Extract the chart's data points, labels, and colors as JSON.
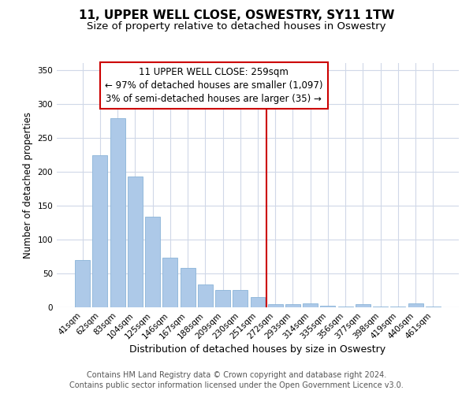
{
  "title": "11, UPPER WELL CLOSE, OSWESTRY, SY11 1TW",
  "subtitle": "Size of property relative to detached houses in Oswestry",
  "xlabel": "Distribution of detached houses by size in Oswestry",
  "ylabel": "Number of detached properties",
  "bar_labels": [
    "41sqm",
    "62sqm",
    "83sqm",
    "104sqm",
    "125sqm",
    "146sqm",
    "167sqm",
    "188sqm",
    "209sqm",
    "230sqm",
    "251sqm",
    "272sqm",
    "293sqm",
    "314sqm",
    "335sqm",
    "356sqm",
    "377sqm",
    "398sqm",
    "419sqm",
    "440sqm",
    "461sqm"
  ],
  "bar_values": [
    70,
    224,
    279,
    193,
    134,
    73,
    58,
    34,
    25,
    25,
    15,
    5,
    5,
    6,
    2,
    1,
    5,
    1,
    1,
    6,
    1
  ],
  "bar_color": "#adc9e8",
  "bar_edge_color": "#8ab4d8",
  "vline_x_index": 10.5,
  "vline_color": "#cc0000",
  "annotation_line1": "11 UPPER WELL CLOSE: 259sqm",
  "annotation_line2": "← 97% of detached houses are smaller (1,097)",
  "annotation_line3": "3% of semi-detached houses are larger (35) →",
  "ylim": [
    0,
    360
  ],
  "yticks": [
    0,
    50,
    100,
    150,
    200,
    250,
    300,
    350
  ],
  "footer_line1": "Contains HM Land Registry data © Crown copyright and database right 2024.",
  "footer_line2": "Contains public sector information licensed under the Open Government Licence v3.0.",
  "title_fontsize": 11,
  "subtitle_fontsize": 9.5,
  "xlabel_fontsize": 9,
  "ylabel_fontsize": 8.5,
  "tick_fontsize": 7.5,
  "annotation_fontsize": 8.5,
  "footer_fontsize": 7,
  "background_color": "#ffffff",
  "grid_color": "#d0d8e8"
}
